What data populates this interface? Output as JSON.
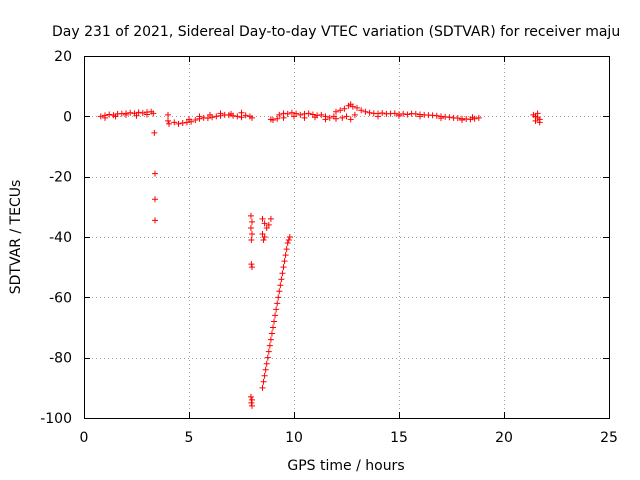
{
  "chart_data": {
    "type": "scatter",
    "title": "Day 231 of 2021, Sidereal Day-to-day VTEC variation (SDTVAR) for receiver maju",
    "xlabel": "GPS time / hours",
    "ylabel": "SDTVAR / TECUs",
    "xlim": [
      0,
      25
    ],
    "ylim": [
      -100,
      20
    ],
    "x_ticks": [
      0,
      5,
      10,
      15,
      20,
      25
    ],
    "y_ticks": [
      -100,
      -80,
      -60,
      -40,
      -20,
      0,
      20
    ],
    "grid": true,
    "marker": "plus",
    "color": "#ff0000",
    "series": [
      {
        "points": [
          [
            0.8,
            0.0
          ],
          [
            1.0,
            0.3
          ],
          [
            1.2,
            0.6
          ],
          [
            1.4,
            0.4
          ],
          [
            1.6,
            0.8
          ],
          [
            1.8,
            0.9
          ],
          [
            2.0,
            1.0
          ],
          [
            2.2,
            1.2
          ],
          [
            2.4,
            1.0
          ],
          [
            2.6,
            1.3
          ],
          [
            2.8,
            1.1
          ],
          [
            3.0,
            1.4
          ],
          [
            3.2,
            1.5
          ],
          [
            3.3,
            1.0
          ],
          [
            1.0,
            -0.5
          ],
          [
            1.5,
            0.0
          ],
          [
            2.0,
            0.5
          ],
          [
            2.5,
            0.2
          ],
          [
            3.0,
            0.6
          ],
          [
            3.35,
            -5.5
          ],
          [
            3.38,
            -19
          ],
          [
            3.38,
            -27.5
          ],
          [
            3.38,
            -34.5
          ],
          [
            4.0,
            0.5
          ],
          [
            4.0,
            -1.5
          ],
          [
            4.05,
            -2.5
          ],
          [
            4.3,
            -2.0
          ],
          [
            4.5,
            -2.5
          ],
          [
            4.7,
            -2.2
          ],
          [
            4.9,
            -2.0
          ],
          [
            5.1,
            -1.8
          ],
          [
            5.3,
            -1.2
          ],
          [
            5.5,
            -0.8
          ],
          [
            5.7,
            -0.5
          ],
          [
            5.9,
            -0.6
          ],
          [
            6.1,
            -0.3
          ],
          [
            6.3,
            0.0
          ],
          [
            6.5,
            0.2
          ],
          [
            6.7,
            0.5
          ],
          [
            6.9,
            0.4
          ],
          [
            7.1,
            0.2
          ],
          [
            7.3,
            0.0
          ],
          [
            7.5,
            -0.3
          ],
          [
            7.7,
            0.3
          ],
          [
            7.9,
            0.0
          ],
          [
            8.0,
            -0.5
          ],
          [
            5.0,
            -1.0
          ],
          [
            5.5,
            0.0
          ],
          [
            6.0,
            0.5
          ],
          [
            6.5,
            1.0
          ],
          [
            7.0,
            0.8
          ],
          [
            7.5,
            1.2
          ],
          [
            7.95,
            -33
          ],
          [
            8.0,
            -35
          ],
          [
            7.95,
            -37
          ],
          [
            8.0,
            -39
          ],
          [
            7.97,
            -41
          ],
          [
            8.0,
            -50
          ],
          [
            7.97,
            -49
          ],
          [
            7.95,
            -93
          ],
          [
            8.0,
            -94
          ],
          [
            7.97,
            -95
          ],
          [
            8.0,
            -96
          ],
          [
            8.5,
            -34
          ],
          [
            8.6,
            -35.5
          ],
          [
            8.7,
            -37
          ],
          [
            8.8,
            -36
          ],
          [
            8.9,
            -34
          ],
          [
            8.5,
            -39
          ],
          [
            8.55,
            -41
          ],
          [
            8.6,
            -40
          ],
          [
            8.9,
            -1.0
          ],
          [
            9.0,
            -1.2
          ],
          [
            9.2,
            -0.8
          ],
          [
            8.5,
            -90
          ],
          [
            8.6,
            -86
          ],
          [
            8.7,
            -82
          ],
          [
            8.8,
            -78
          ],
          [
            8.9,
            -74
          ],
          [
            9.0,
            -70
          ],
          [
            9.1,
            -66
          ],
          [
            9.2,
            -62
          ],
          [
            9.3,
            -58
          ],
          [
            9.4,
            -54
          ],
          [
            9.5,
            -50
          ],
          [
            9.6,
            -46
          ],
          [
            9.7,
            -42
          ],
          [
            9.8,
            -40
          ],
          [
            8.55,
            -88
          ],
          [
            8.65,
            -84
          ],
          [
            8.75,
            -80
          ],
          [
            8.85,
            -76
          ],
          [
            8.95,
            -72
          ],
          [
            9.05,
            -68
          ],
          [
            9.15,
            -64
          ],
          [
            9.25,
            -60
          ],
          [
            9.35,
            -56
          ],
          [
            9.45,
            -52
          ],
          [
            9.55,
            -48
          ],
          [
            9.65,
            -44
          ],
          [
            9.75,
            -41
          ],
          [
            9.3,
            0.5
          ],
          [
            9.5,
            1.0
          ],
          [
            9.7,
            0.8
          ],
          [
            9.9,
            1.2
          ],
          [
            10.1,
            0.9
          ],
          [
            10.3,
            0.5
          ],
          [
            10.5,
            0.8
          ],
          [
            10.7,
            1.0
          ],
          [
            10.9,
            0.6
          ],
          [
            11.1,
            0.3
          ],
          [
            11.3,
            0.5
          ],
          [
            11.5,
            0.0
          ],
          [
            11.7,
            -0.5
          ],
          [
            11.9,
            0.0
          ],
          [
            9.5,
            -0.5
          ],
          [
            10.0,
            0.0
          ],
          [
            10.5,
            -0.5
          ],
          [
            11.0,
            -0.3
          ],
          [
            11.5,
            -1.0
          ],
          [
            12.0,
            -0.8
          ],
          [
            12.0,
            1.5
          ],
          [
            12.2,
            2.0
          ],
          [
            12.4,
            2.5
          ],
          [
            12.6,
            3.5
          ],
          [
            12.7,
            4.0
          ],
          [
            12.8,
            3.2
          ],
          [
            13.0,
            2.8
          ],
          [
            13.2,
            2.0
          ],
          [
            13.4,
            1.5
          ],
          [
            12.5,
            0.0
          ],
          [
            12.7,
            -1.0
          ],
          [
            12.9,
            0.5
          ],
          [
            12.3,
            -0.5
          ],
          [
            13.6,
            1.2
          ],
          [
            13.8,
            1.0
          ],
          [
            14.0,
            0.9
          ],
          [
            14.2,
            1.1
          ],
          [
            14.4,
            0.8
          ],
          [
            14.6,
            0.9
          ],
          [
            14.8,
            1.0
          ],
          [
            15.0,
            0.7
          ],
          [
            15.2,
            0.8
          ],
          [
            15.4,
            0.6
          ],
          [
            15.6,
            0.9
          ],
          [
            15.8,
            0.8
          ],
          [
            16.0,
            0.6
          ],
          [
            16.2,
            0.5
          ],
          [
            16.4,
            0.4
          ],
          [
            16.6,
            0.3
          ],
          [
            16.8,
            0.2
          ],
          [
            17.0,
            0.0
          ],
          [
            17.2,
            -0.2
          ],
          [
            17.4,
            -0.3
          ],
          [
            17.6,
            -0.5
          ],
          [
            17.8,
            -0.6
          ],
          [
            18.0,
            -0.8
          ],
          [
            18.2,
            -0.9
          ],
          [
            18.4,
            -1.0
          ],
          [
            18.6,
            -0.8
          ],
          [
            18.8,
            -0.5
          ],
          [
            14.0,
            0.0
          ],
          [
            15.0,
            0.2
          ],
          [
            16.0,
            0.0
          ],
          [
            17.0,
            -0.6
          ],
          [
            18.0,
            -1.2
          ],
          [
            18.5,
            -0.3
          ],
          [
            21.4,
            0.5
          ],
          [
            21.5,
            0.0
          ],
          [
            21.6,
            -0.5
          ],
          [
            21.7,
            -1.0
          ],
          [
            21.5,
            -1.5
          ],
          [
            21.6,
            1.0
          ],
          [
            21.7,
            -2.0
          ]
        ]
      }
    ]
  }
}
